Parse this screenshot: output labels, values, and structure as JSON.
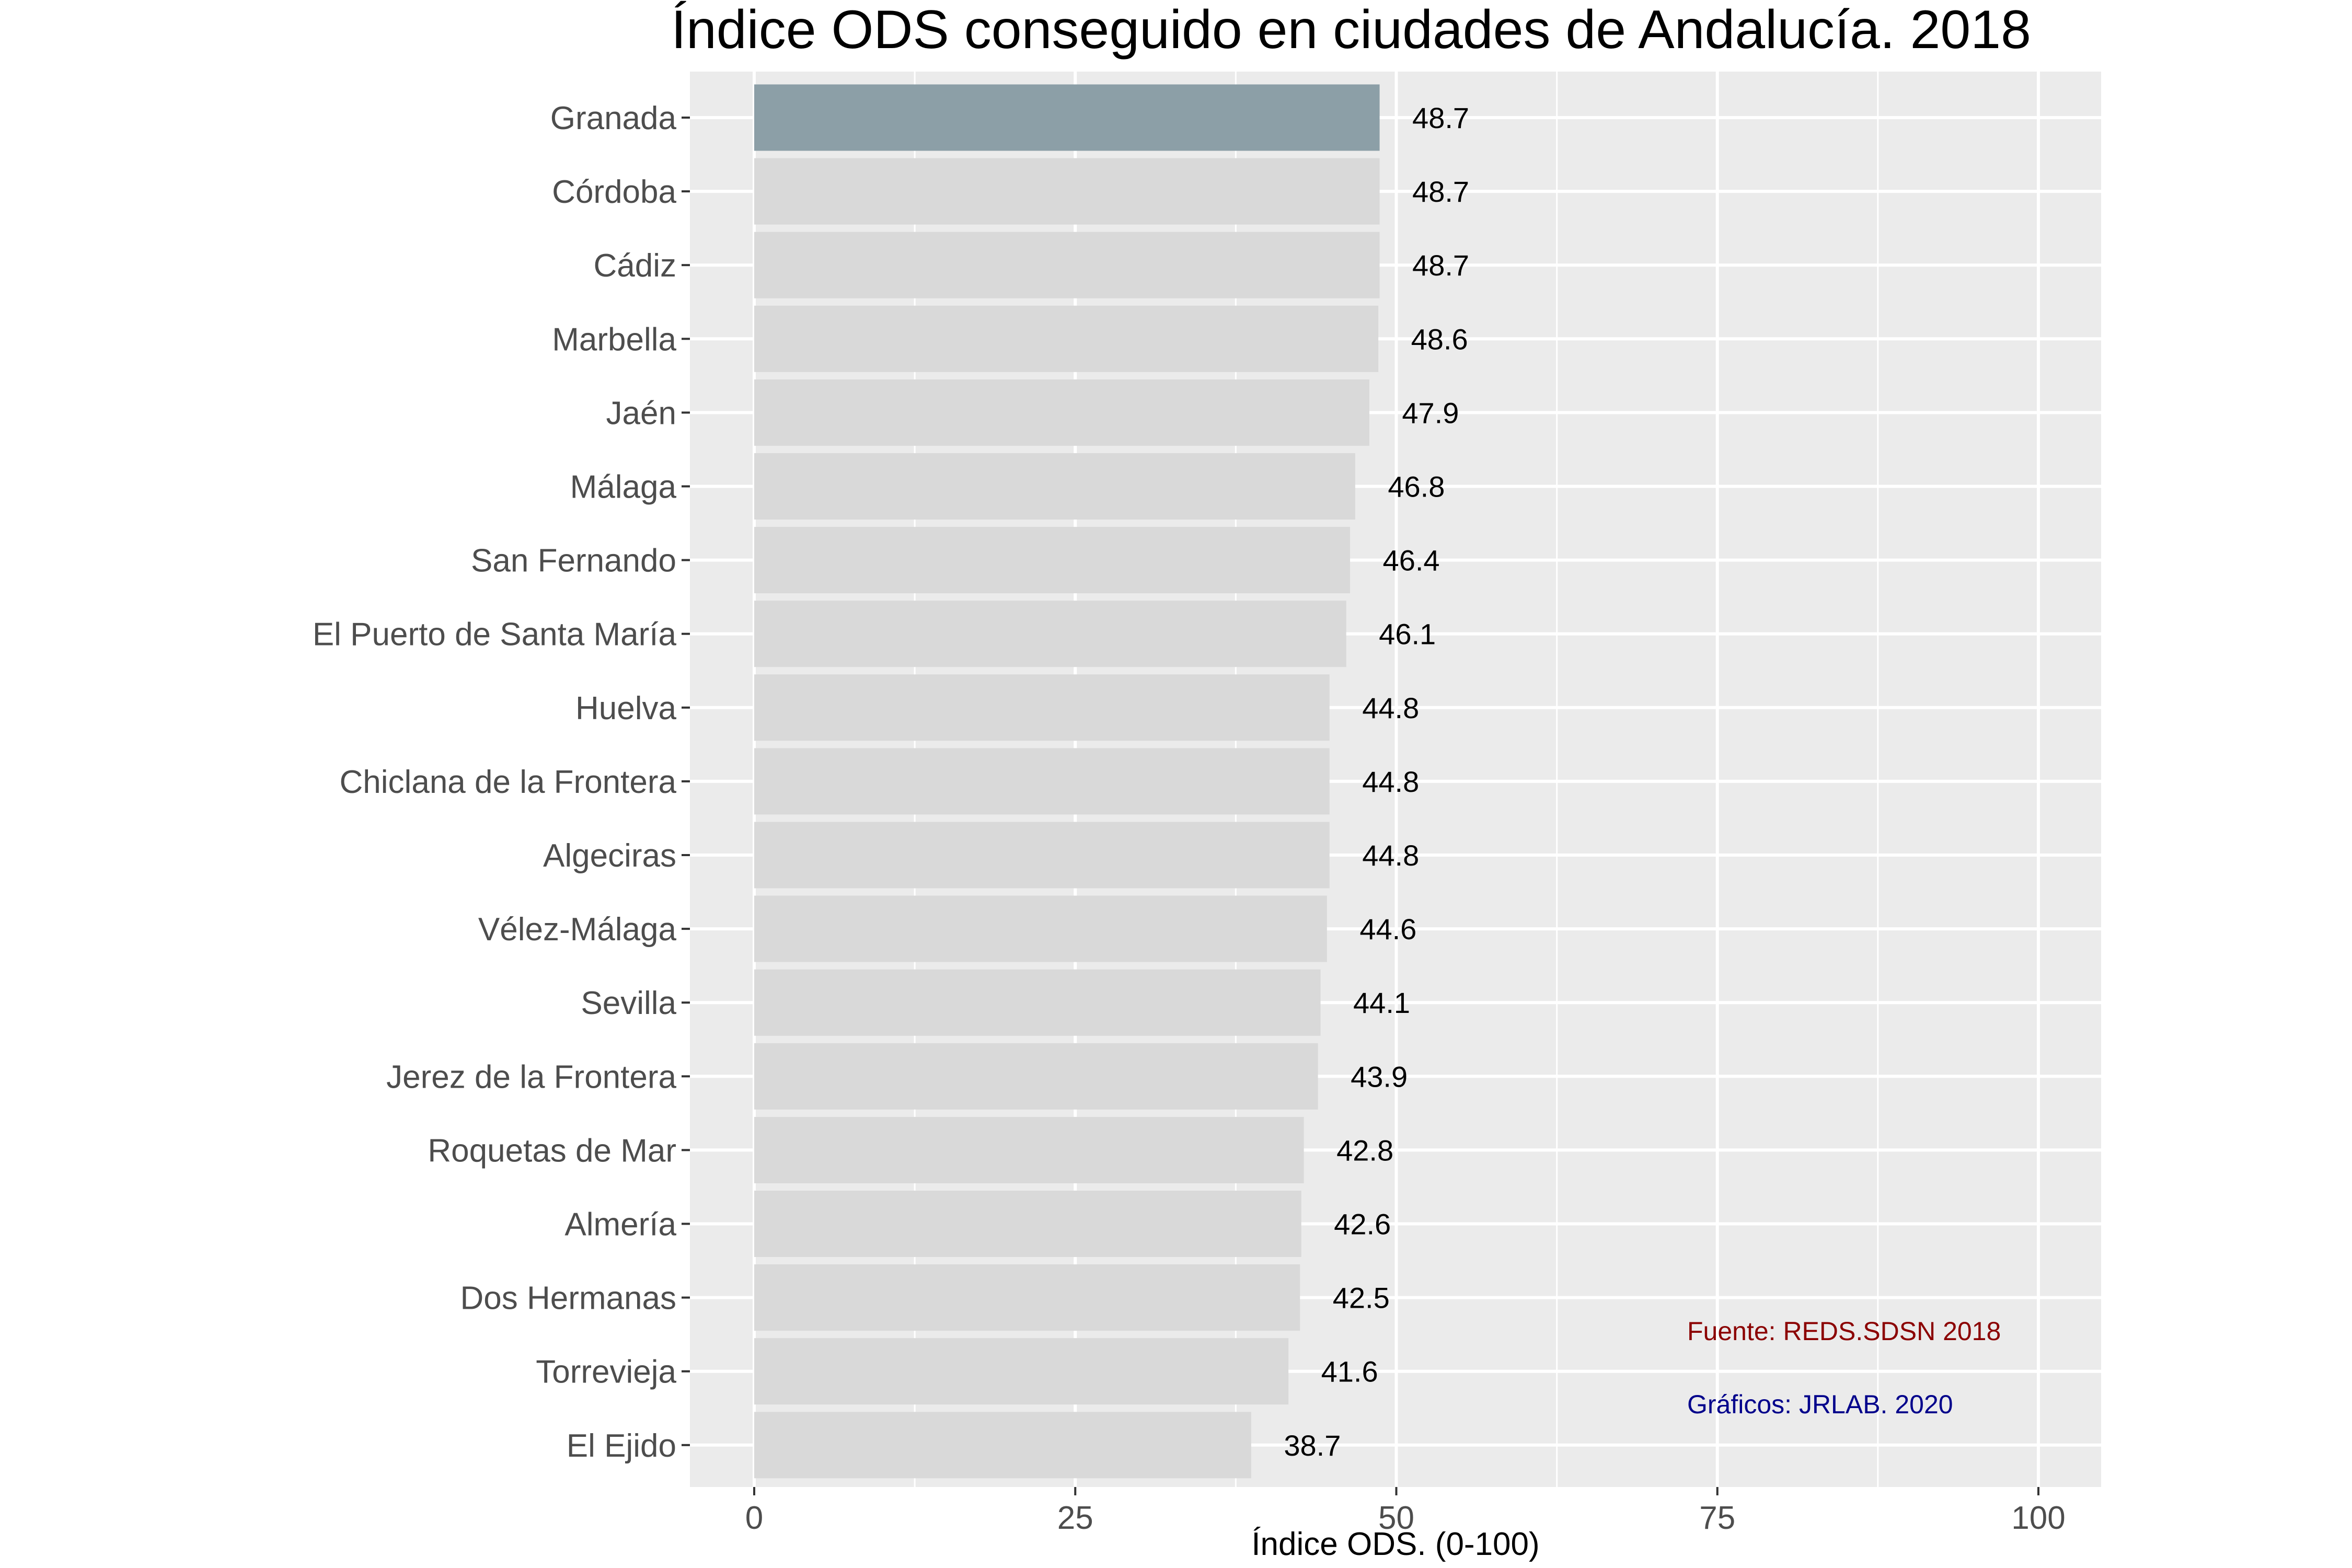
{
  "chart_data": {
    "type": "bar",
    "orientation": "horizontal",
    "title": "Índice ODS conseguido en ciudades de Andalucía. 2018",
    "xlabel": "Índice ODS. (0-100)",
    "ylabel": "",
    "xlim": [
      0,
      100
    ],
    "xticks": [
      "0",
      "25",
      "50",
      "75",
      "100"
    ],
    "xtick_values": [
      0,
      25,
      50,
      75,
      100
    ],
    "grid": true,
    "categories": [
      "Granada",
      "Córdoba",
      "Cádiz",
      "Marbella",
      "Jaén",
      "Málaga",
      "San Fernando",
      "El Puerto de Santa María",
      "Huelva",
      "Chiclana de la Frontera",
      "Algeciras",
      "Vélez-Málaga",
      "Sevilla",
      "Jerez de la Frontera",
      "Roquetas de Mar",
      "Almería",
      "Dos Hermanas",
      "Torrevieja",
      "El Ejido"
    ],
    "values": [
      48.7,
      48.7,
      48.7,
      48.6,
      47.9,
      46.8,
      46.4,
      46.1,
      44.8,
      44.8,
      44.8,
      44.6,
      44.1,
      43.9,
      42.8,
      42.6,
      42.5,
      41.6,
      38.7
    ],
    "data_labels": [
      "48.7",
      "48.7",
      "48.7",
      "48.6",
      "47.9",
      "46.8",
      "46.4",
      "46.1",
      "44.8",
      "44.8",
      "44.8",
      "44.6",
      "44.1",
      "43.9",
      "42.8",
      "42.6",
      "42.5",
      "41.6",
      "38.7"
    ],
    "highlight_index": 0,
    "colors": {
      "highlight_bar": "#8c9fa7",
      "bar": "#d9d9d9",
      "panel": "#ebebeb",
      "grid": "#ffffff",
      "source_note": "#8b0000",
      "credit_note": "#00008b"
    },
    "annotations": {
      "source": "Fuente: REDS.SDSN 2018",
      "credit": "Gráficos: JRLAB. 2020"
    }
  }
}
